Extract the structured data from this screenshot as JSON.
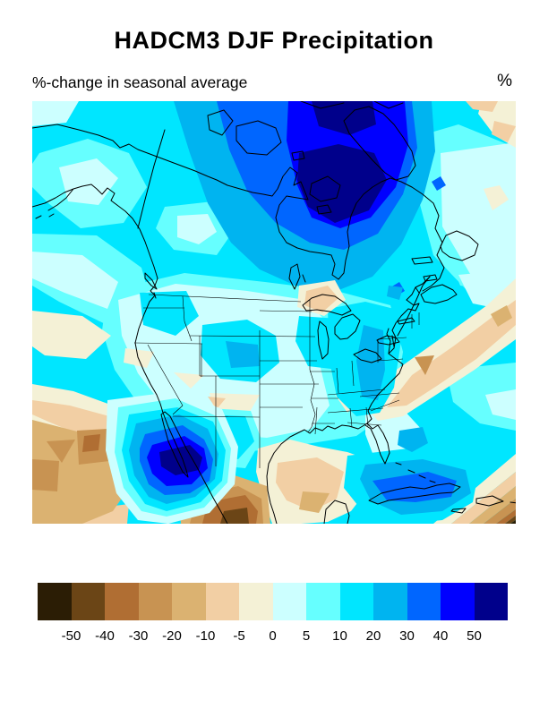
{
  "title": "HADCM3 DJF Precipitation",
  "subtitle": "%-change in seasonal average",
  "units_label": "%",
  "colorbar": {
    "tick_labels": [
      "-50",
      "-40",
      "-30",
      "-20",
      "-10",
      "-5",
      "0",
      "5",
      "10",
      "20",
      "30",
      "40",
      "50"
    ],
    "colors": [
      "#2b1d05",
      "#6b4516",
      "#b06e33",
      "#c89352",
      "#dbb271",
      "#f2cfa4",
      "#f4f1d6",
      "#ccffff",
      "#66ffff",
      "#00e6ff",
      "#00b4f0",
      "#0066ff",
      "#0000ff",
      "#00008b"
    ]
  },
  "chart_data": {
    "type": "heatmap",
    "title": "HADCM3 DJF Precipitation",
    "subtitle": "%-change in seasonal average",
    "units": "%",
    "region": "North America (Alaska/Arctic Canada to Mexico/Caribbean)",
    "levels": [
      -50,
      -40,
      -30,
      -20,
      -10,
      -5,
      0,
      5,
      10,
      20,
      30,
      40,
      50
    ],
    "palette": [
      "#2b1d05",
      "#6b4516",
      "#b06e33",
      "#c89352",
      "#dbb271",
      "#f2cfa4",
      "#f4f1d6",
      "#ccffff",
      "#66ffff",
      "#00e6ff",
      "#00b4f0",
      "#0066ff",
      "#0000ff",
      "#00008b"
    ],
    "legend_position": "bottom",
    "grid": false,
    "features": [
      {
        "area": "Baffin Island / Foxe Basin / Hudson Bay north",
        "value_pct": "+40 to >+50"
      },
      {
        "area": "Surrounding Hudson Bay region",
        "value_pct": "+20 to +40"
      },
      {
        "area": "Alaska, western and central Canada, Quebec/Labrador",
        "value_pct": "+10 to +20"
      },
      {
        "area": "Pacific off Baja California (bullseye)",
        "value_pct": ">+50"
      },
      {
        "area": "Colorado Rockies spot",
        "value_pct": "+20 to +30"
      },
      {
        "area": "Ohio Valley / Appalachians spot",
        "value_pct": "+20 to +30"
      },
      {
        "area": "Cuba / western Caribbean",
        "value_pct": "+30 to +40"
      },
      {
        "area": "Central United States",
        "value_pct": "0 to +10"
      },
      {
        "area": "Great Basin and offshore California",
        "value_pct": "-5 to 0"
      },
      {
        "area": "Gulf of Mexico interior",
        "value_pct": "-5 to -20"
      },
      {
        "area": "Subtropical Pacific southwest of Mexico",
        "value_pct": "-10 to -30"
      },
      {
        "area": "Central Mexico",
        "value_pct": "-20 to -40"
      },
      {
        "area": "Atlantic band off US east coast",
        "value_pct": "-5 to -20"
      },
      {
        "area": "Far southeast corner of domain",
        "value_pct": "-40 to <-50"
      }
    ]
  }
}
